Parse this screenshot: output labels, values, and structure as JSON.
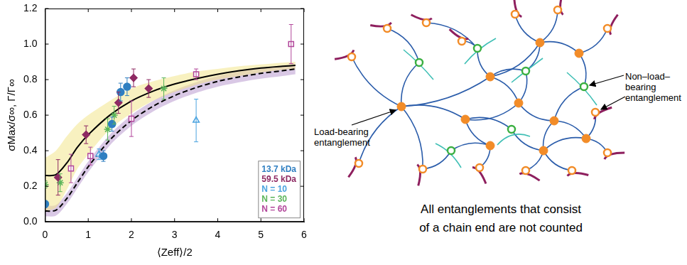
{
  "chart_data": {
    "type": "scatter",
    "x_label": "⟨Zeff⟩/2",
    "y_label": "σMax/σ∞, Γ/Γ∞",
    "xlim": [
      0,
      6
    ],
    "xticks": [
      0,
      1,
      2,
      3,
      4,
      5,
      6
    ],
    "ylim": [
      0,
      1.2
    ],
    "yticks": [
      {
        "value": 0,
        "label": "0.0"
      },
      0.2,
      0.4,
      0.6,
      0.8,
      {
        "value": 1,
        "label": "1.0"
      },
      1.2
    ],
    "grid": false,
    "legend": "lower right",
    "series": [
      {
        "name": "13.7 kDa",
        "color": "#2f7fc1",
        "marker": "circle",
        "x": [
          0,
          1.35,
          1.55,
          1.75,
          1.9
        ],
        "values": [
          0.1,
          0.37,
          0.55,
          0.73,
          0.76
        ],
        "errors": [
          0.02,
          0.03,
          0.04,
          0.05,
          0.05
        ]
      },
      {
        "name": "59.5 kDa",
        "color": "#8e2a63",
        "marker": "diamond",
        "x": [
          0.3,
          0.95,
          1.7,
          2.05,
          2.4
        ],
        "values": [
          0.25,
          0.49,
          0.67,
          0.81,
          0.75
        ],
        "errors": [
          0.1,
          0.05,
          0.06,
          0.05,
          0.05
        ]
      },
      {
        "name": "N = 10",
        "color": "#4aa3df",
        "marker": "open_triangle",
        "x": [
          1.25,
          3.5
        ],
        "values": [
          0.38,
          0.57
        ],
        "errors": [
          0.03,
          0.12
        ]
      },
      {
        "name": "N = 30",
        "color": "#5bb55a",
        "marker": "open_star",
        "x": [
          0,
          0.35,
          1.45,
          1.6,
          2.75
        ],
        "values": [
          0.21,
          0.22,
          0.52,
          0.6,
          0.75
        ],
        "errors": [
          0.02,
          0.05,
          0.06,
          0.05,
          0.06
        ]
      },
      {
        "name": "N = 60",
        "color": "#b2479b",
        "marker": "open_rect",
        "x": [
          0.6,
          1.05,
          2.0,
          3.5,
          5.7
        ],
        "values": [
          0.3,
          0.37,
          0.58,
          0.83,
          1.0
        ],
        "errors": [
          0.08,
          0.05,
          0.1,
          0.03,
          0.11
        ]
      },
      {
        "type": "band",
        "color": "#f2e68c",
        "x": [
          0,
          0.25,
          0.5,
          0.75,
          1,
          1.5,
          2,
          2.5,
          3,
          3.5,
          4,
          4.5,
          5,
          5.5,
          5.8
        ],
        "lower": [
          0.06,
          0.08,
          0.18,
          0.3,
          0.38,
          0.52,
          0.61,
          0.68,
          0.73,
          0.77,
          0.8,
          0.82,
          0.84,
          0.855,
          0.86
        ],
        "upper": [
          0.36,
          0.4,
          0.48,
          0.55,
          0.6,
          0.68,
          0.75,
          0.79,
          0.82,
          0.845,
          0.86,
          0.875,
          0.885,
          0.895,
          0.9
        ]
      },
      {
        "type": "band",
        "color": "#b99ad0",
        "x": [
          0,
          0.25,
          0.5,
          0.75,
          1,
          1.5,
          2,
          2.5,
          3,
          3.5,
          4,
          4.5,
          5,
          5.5,
          5.8
        ],
        "lower": [
          0.03,
          0.035,
          0.1,
          0.19,
          0.28,
          0.43,
          0.54,
          0.62,
          0.68,
          0.725,
          0.76,
          0.785,
          0.805,
          0.82,
          0.83
        ],
        "upper": [
          0.09,
          0.095,
          0.16,
          0.25,
          0.34,
          0.49,
          0.6,
          0.68,
          0.74,
          0.785,
          0.82,
          0.845,
          0.865,
          0.88,
          0.89
        ]
      },
      {
        "type": "line",
        "color": "#000000",
        "line_style": "solid",
        "x": [
          0,
          0.25,
          0.5,
          0.75,
          1,
          1.5,
          2,
          2.5,
          3,
          3.5,
          4,
          4.5,
          5,
          5.5,
          5.8
        ],
        "values": [
          0.26,
          0.265,
          0.33,
          0.42,
          0.49,
          0.6,
          0.68,
          0.735,
          0.775,
          0.805,
          0.83,
          0.85,
          0.865,
          0.875,
          0.88
        ]
      },
      {
        "type": "line",
        "color": "#000000",
        "line_style": "dashed",
        "x": [
          0,
          0.25,
          0.5,
          0.75,
          1,
          1.5,
          2,
          2.5,
          3,
          3.5,
          4,
          4.5,
          5,
          5.5,
          5.8
        ],
        "values": [
          0.06,
          0.065,
          0.13,
          0.22,
          0.31,
          0.46,
          0.57,
          0.65,
          0.71,
          0.755,
          0.79,
          0.815,
          0.835,
          0.85,
          0.86
        ]
      }
    ]
  },
  "diagram": {
    "labels": [
      {
        "lines": [
          "Load-bearing",
          "entanglement"
        ]
      },
      {
        "lines": [
          "Non–load–",
          "bearing",
          "entanglement"
        ]
      }
    ],
    "caption": [
      "All entanglements that consist",
      "of a chain end are not counted"
    ]
  }
}
